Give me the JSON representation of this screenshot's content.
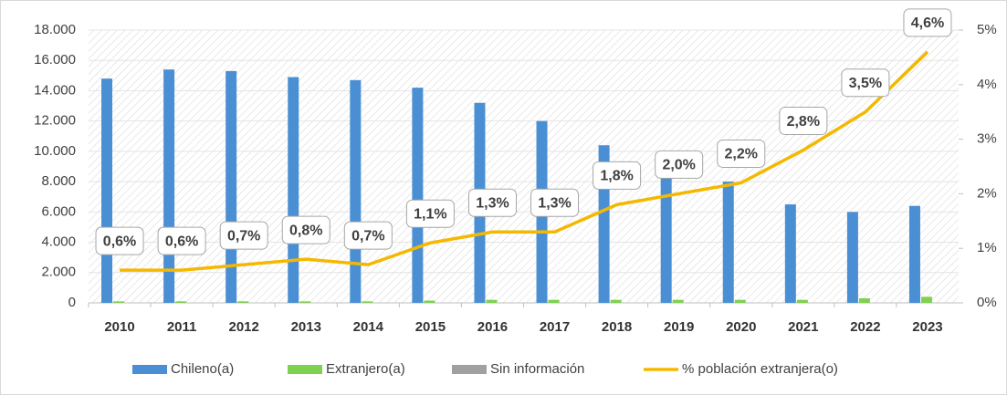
{
  "chart_data": {
    "type": "bar",
    "categories": [
      "2010",
      "2011",
      "2012",
      "2013",
      "2014",
      "2015",
      "2016",
      "2017",
      "2018",
      "2019",
      "2020",
      "2021",
      "2022",
      "2023"
    ],
    "series": [
      {
        "name": "Chileno(a)",
        "color": "#4a8fd4",
        "values": [
          14800,
          15400,
          15300,
          14900,
          14700,
          14200,
          13200,
          12000,
          10400,
          8500,
          8000,
          6500,
          6000,
          6400
        ]
      },
      {
        "name": "Extranjero(a)",
        "color": "#7fd14f",
        "values": [
          100,
          100,
          100,
          100,
          100,
          150,
          200,
          200,
          200,
          200,
          200,
          200,
          300,
          400
        ]
      },
      {
        "name": "Sin información",
        "color": "#a0a0a0",
        "values": [
          0,
          0,
          0,
          0,
          0,
          0,
          0,
          0,
          0,
          0,
          0,
          0,
          0,
          0
        ]
      },
      {
        "name": "% población extranjera(o)",
        "color": "#f5b800",
        "axis": "y2",
        "type": "line",
        "values": [
          0.6,
          0.6,
          0.7,
          0.8,
          0.7,
          1.1,
          1.3,
          1.3,
          1.8,
          2.0,
          2.2,
          2.8,
          3.5,
          4.6
        ],
        "value_labels": [
          "0,6%",
          "0,6%",
          "0,7%",
          "0,8%",
          "0,7%",
          "1,1%",
          "1,3%",
          "1,3%",
          "1,8%",
          "2,0%",
          "2,2%",
          "2,8%",
          "3,5%",
          "4,6%"
        ]
      }
    ],
    "ylim": [
      0,
      18000
    ],
    "yticks": [
      {
        "value": 0,
        "label": "0"
      },
      {
        "value": 2000,
        "label": "2.000"
      },
      {
        "value": 4000,
        "label": "4.000"
      },
      {
        "value": 6000,
        "label": "6.000"
      },
      {
        "value": 8000,
        "label": "8.000"
      },
      {
        "value": 10000,
        "label": "10.000"
      },
      {
        "value": 12000,
        "label": "12.000"
      },
      {
        "value": 14000,
        "label": "14.000"
      },
      {
        "value": 16000,
        "label": "16.000"
      },
      {
        "value": 18000,
        "label": "18.000"
      }
    ],
    "y2lim": [
      0,
      5
    ],
    "y2ticks": [
      {
        "value": 0,
        "label": "0%"
      },
      {
        "value": 1,
        "label": "1%"
      },
      {
        "value": 2,
        "label": "2%"
      },
      {
        "value": 3,
        "label": "3%"
      },
      {
        "value": 4,
        "label": "4%"
      },
      {
        "value": 5,
        "label": "5%"
      }
    ],
    "grid": true,
    "legend": "bottom"
  }
}
